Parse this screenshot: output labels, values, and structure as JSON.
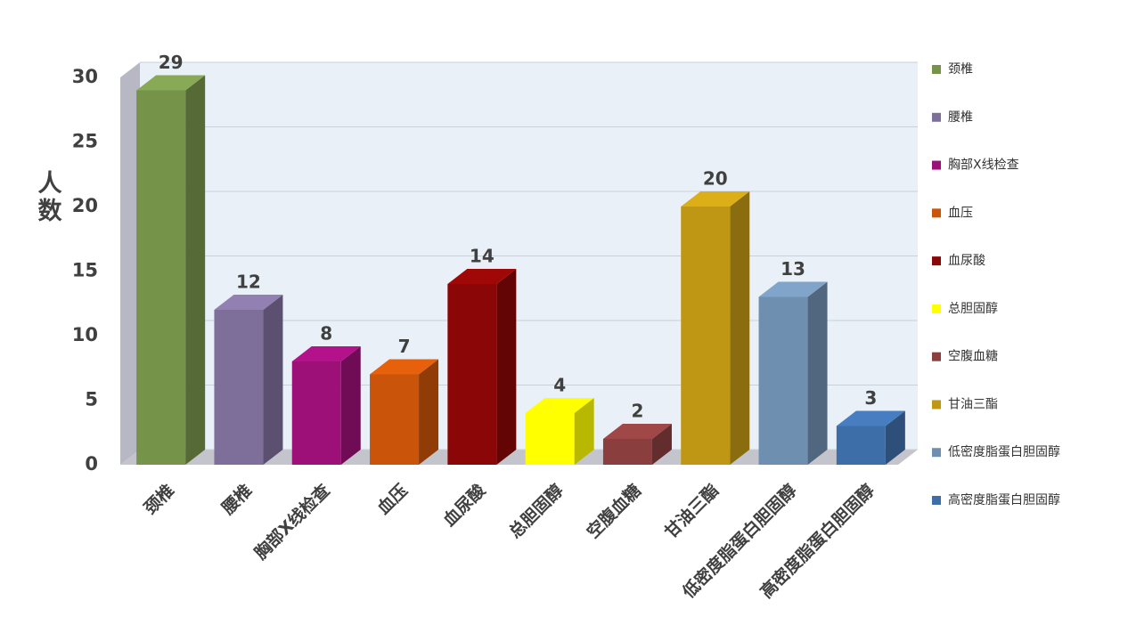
{
  "chart_data": {
    "type": "bar3d",
    "y_label": "人数",
    "categories": [
      "颈椎",
      "腰椎",
      "胸部X线检查",
      "血压",
      "血尿酸",
      "总胆固醇",
      "空腹血糖",
      "甘油三酯",
      "低密度脂蛋白胆固醇",
      "高密度脂蛋白胆固醇"
    ],
    "values": [
      29,
      12,
      8,
      7,
      14,
      4,
      2,
      20,
      13,
      3
    ],
    "colors": [
      "#76934a",
      "#7e6f9a",
      "#9c1078",
      "#c9540a",
      "#8b0707",
      "#ffff00",
      "#8b3e3e",
      "#bf9714",
      "#6f8fb0",
      "#3e6ea8"
    ],
    "ylim": [
      0,
      30
    ],
    "yticks": [
      0,
      5,
      10,
      15,
      20,
      25,
      30
    ],
    "grid": true,
    "legend": "right"
  }
}
